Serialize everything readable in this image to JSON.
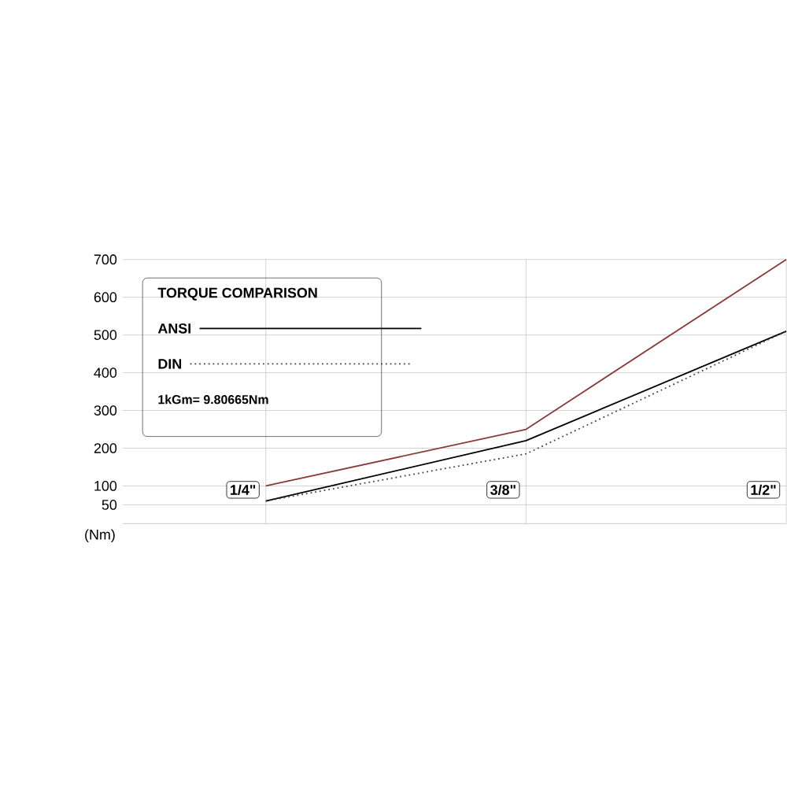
{
  "chart_data": {
    "type": "line",
    "ylabel": "(Nm)",
    "legend_title": "TORQUE COMPARISON",
    "categories": [
      "1/4\"",
      "3/8\"",
      "1/2\""
    ],
    "series": [
      {
        "color": "#8b3a3a",
        "values": [
          100,
          250,
          700
        ],
        "line_style": "solid"
      },
      {
        "name": "ANSI",
        "color": "#000000",
        "values": [
          60,
          220,
          510
        ],
        "line_style": "solid"
      },
      {
        "name": "DIN",
        "color": "#404040",
        "values": [
          60,
          185,
          510
        ],
        "line_style": "dotted"
      }
    ],
    "ylim": [
      0,
      700
    ],
    "yticks": [
      50,
      100,
      200,
      300,
      400,
      500,
      600,
      700
    ],
    "grid": true,
    "legend": "top left",
    "marker": "none",
    "annotations": [
      "1kGm= 9.80665Nm"
    ]
  }
}
